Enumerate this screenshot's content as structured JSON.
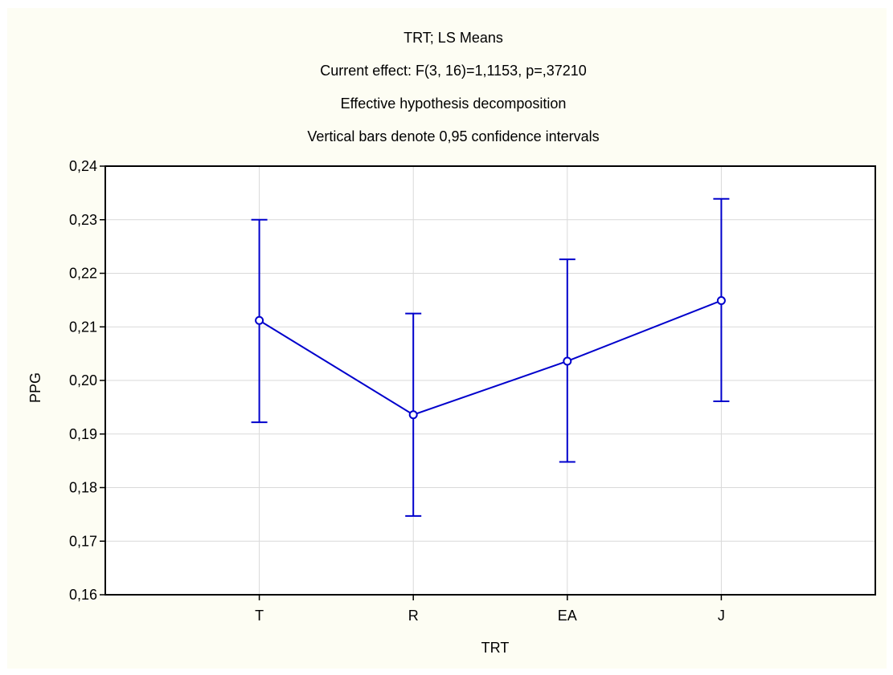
{
  "chart_data": {
    "type": "line",
    "title": [
      "TRT; LS Means",
      "Current effect: F(3, 16)=1,1153, p=,37210",
      "Effective hypothesis decomposition",
      "Vertical bars denote 0,95 confidence intervals"
    ],
    "xlabel": "TRT",
    "ylabel": "PPG",
    "categories": [
      "T",
      "R",
      "EA",
      "J"
    ],
    "ylim": [
      0.16,
      0.24
    ],
    "yticks": [
      0.16,
      0.17,
      0.18,
      0.19,
      0.2,
      0.21,
      0.22,
      0.23,
      0.24
    ],
    "ytick_labels": [
      "0,16",
      "0,17",
      "0,18",
      "0,19",
      "0,20",
      "0,21",
      "0,22",
      "0,23",
      "0,24"
    ],
    "grid": true,
    "series": [
      {
        "values": [
          0.2112,
          0.1936,
          0.2036,
          0.2149
        ],
        "lower": [
          0.1922,
          0.1747,
          0.1848,
          0.1961
        ],
        "upper": [
          0.23,
          0.2125,
          0.2226,
          0.2339
        ],
        "color": "#0000cc"
      }
    ]
  }
}
